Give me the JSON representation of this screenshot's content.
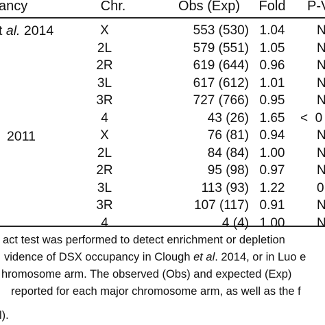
{
  "table": {
    "headers": {
      "occupancy": "ancy",
      "chr": "Chr.",
      "obs_exp": "Obs (Exp)",
      "fold": "Fold",
      "pvalue": "P-V"
    },
    "groups": [
      {
        "label_pre": "t ",
        "label_italic": "al.",
        "label_post": " 2014",
        "rows": [
          {
            "chr": "X",
            "obs_exp": "553 (530)",
            "fold": "1.04",
            "p": "N"
          },
          {
            "chr": "2L",
            "obs_exp": "579 (551)",
            "fold": "1.05",
            "p": "N"
          },
          {
            "chr": "2R",
            "obs_exp": "619 (644)",
            "fold": "0.96",
            "p": "N"
          },
          {
            "chr": "3L",
            "obs_exp": "617 (612)",
            "fold": "1.01",
            "p": "N"
          },
          {
            "chr": "3R",
            "obs_exp": "727 (766)",
            "fold": "0.95",
            "p": "N"
          },
          {
            "chr": "4",
            "obs_exp": "43 (26)",
            "fold": "1.65",
            "p": "<  0"
          }
        ]
      },
      {
        "label_pre": "2011",
        "label_italic": "",
        "label_post": "",
        "rows": [
          {
            "chr": "X",
            "obs_exp": "76 (81)",
            "fold": "0.94",
            "p": "N"
          },
          {
            "chr": "2L",
            "obs_exp": "84 (84)",
            "fold": "1.00",
            "p": "N"
          },
          {
            "chr": "2R",
            "obs_exp": "95 (98)",
            "fold": "0.97",
            "p": "N"
          },
          {
            "chr": "3L",
            "obs_exp": "113 (93)",
            "fold": "1.22",
            "p": "0"
          },
          {
            "chr": "3R",
            "obs_exp": "107 (117)",
            "fold": "0.91",
            "p": "N"
          },
          {
            "chr": "4",
            "obs_exp": "4 (4)",
            "fold": "1.00",
            "p": "N"
          }
        ]
      }
    ]
  },
  "footnote": {
    "line1": "act test was performed to detect enrichment or depletion",
    "line2_pre": "vidence of DSX occupancy in Clough ",
    "line2_italic": "et al",
    "line2_post": ". 2014, or in Luo e",
    "line3": "hromosome arm. The observed (Obs) and expected (Exp)",
    "line4": "reported for each major chromosome arm, as well as the f",
    "line5": "l)."
  }
}
